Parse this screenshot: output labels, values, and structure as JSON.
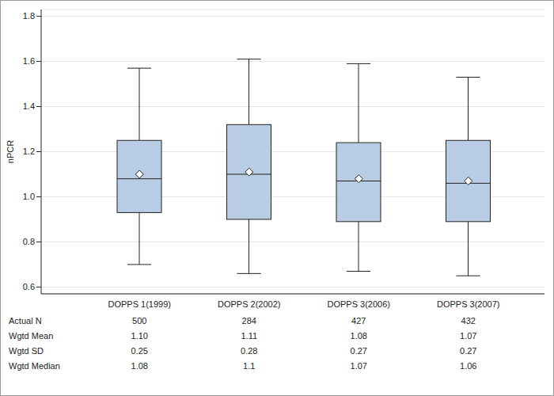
{
  "chart_data": {
    "type": "box",
    "ylabel": "nPCR",
    "categories": [
      "DOPPS 1(1999)",
      "DOPPS 2(2002)",
      "DOPPS 3(2006)",
      "DOPPS 3(2007)"
    ],
    "boxes": [
      {
        "min": 0.7,
        "q1": 0.93,
        "median": 1.08,
        "q3": 1.25,
        "max": 1.57,
        "mean": 1.1
      },
      {
        "min": 0.66,
        "q1": 0.9,
        "median": 1.1,
        "q3": 1.32,
        "max": 1.61,
        "mean": 1.11
      },
      {
        "min": 0.67,
        "q1": 0.89,
        "median": 1.07,
        "q3": 1.24,
        "max": 1.59,
        "mean": 1.08
      },
      {
        "min": 0.65,
        "q1": 0.89,
        "median": 1.06,
        "q3": 1.25,
        "max": 1.53,
        "mean": 1.07
      }
    ],
    "color": "#b8cce4",
    "marker": "diamond",
    "ylim": [
      0.57,
      1.83
    ],
    "yticks": [
      0.6,
      0.8,
      {
        "value": 1,
        "label": "1.0"
      },
      1.2,
      1.4,
      1.6,
      1.8
    ],
    "grid": true,
    "table": {
      "rows": [
        {
          "label": "Actual N",
          "values": [
            "500",
            "284",
            "427",
            "432"
          ]
        },
        {
          "label": "Wgtd Mean",
          "values": [
            "1.10",
            "1.11",
            "1.08",
            "1.07"
          ]
        },
        {
          "label": "Wgtd SD",
          "values": [
            "0.25",
            "0.28",
            "0.27",
            "0.27"
          ]
        },
        {
          "label": "Wgtd Median",
          "values": [
            "1.08",
            "1.1",
            "1.07",
            "1.06"
          ]
        }
      ]
    }
  }
}
